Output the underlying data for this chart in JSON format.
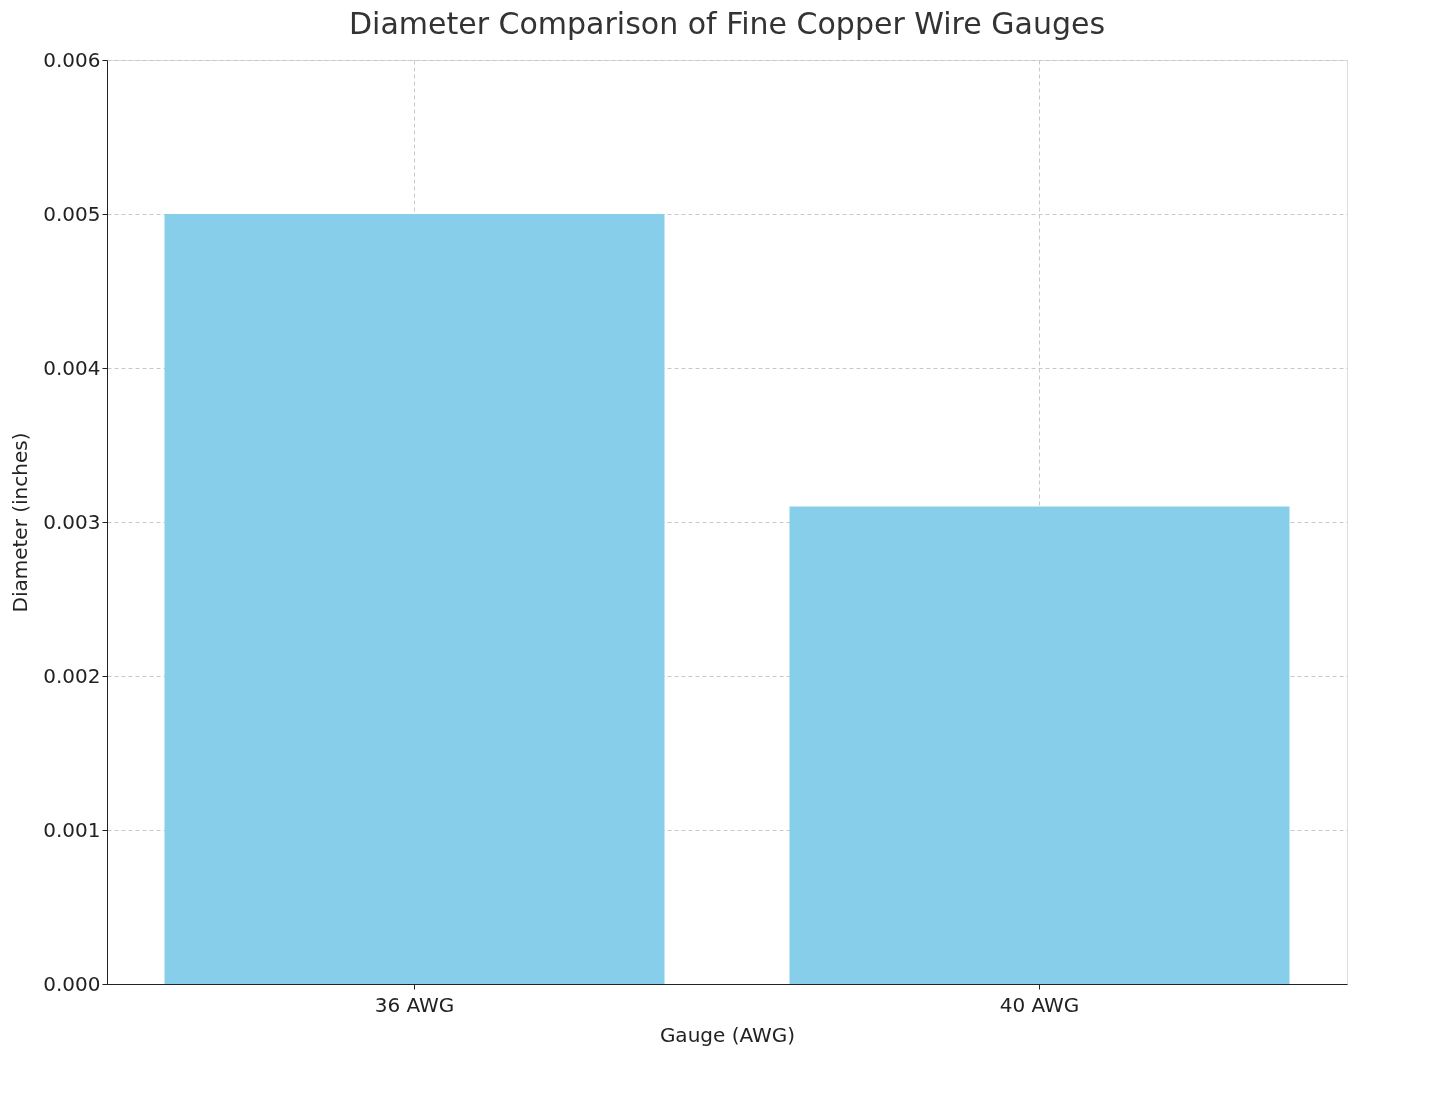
{
  "chart_data": {
    "type": "bar",
    "title": "Diameter Comparison of Fine Copper Wire Gauges",
    "xlabel": "Gauge (AWG)",
    "ylabel": "Diameter (inches)",
    "categories": [
      "36 AWG",
      "40 AWG"
    ],
    "values": [
      0.005,
      0.0031
    ],
    "color": "#87ceeb",
    "ylim": [
      0,
      0.006
    ],
    "yticks": [
      {
        "value": 0,
        "label": "0.000"
      },
      {
        "value": 0.001,
        "label": "0.001"
      },
      {
        "value": 0.002,
        "label": "0.002"
      },
      {
        "value": 0.003,
        "label": "0.003"
      },
      {
        "value": 0.004,
        "label": "0.004"
      },
      {
        "value": 0.005,
        "label": "0.005"
      },
      {
        "value": 0.006,
        "label": "0.006"
      }
    ],
    "grid": true
  }
}
